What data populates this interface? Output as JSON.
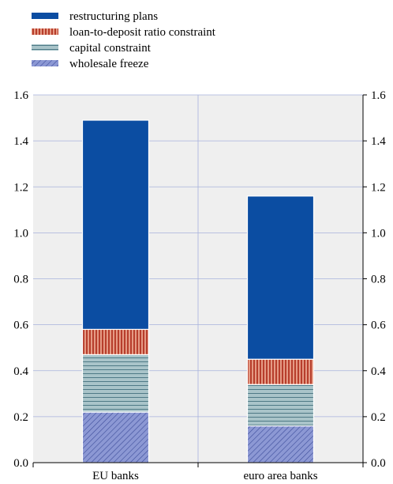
{
  "chart_data": {
    "type": "bar",
    "stacked": true,
    "categories": [
      "EU banks",
      "euro area banks"
    ],
    "series": [
      {
        "name": "wholesale freeze",
        "values": [
          0.22,
          0.16
        ],
        "color": "#8C98D4",
        "pattern": "diagonal-hatch"
      },
      {
        "name": "capital constraint",
        "values": [
          0.25,
          0.18
        ],
        "color": "#A9C4C9",
        "pattern": "horizontal-lines"
      },
      {
        "name": "loan-to-deposit ratio constraint",
        "values": [
          0.11,
          0.11
        ],
        "color": "#E59A84",
        "pattern": "vertical-lines"
      },
      {
        "name": "restructuring plans",
        "values": [
          0.91,
          0.71
        ],
        "color": "#0B4DA2",
        "pattern": "solid"
      }
    ],
    "legend_order": [
      "restructuring plans",
      "loan-to-deposit ratio constraint",
      "capital constraint",
      "wholesale freeze"
    ],
    "ylim": [
      0,
      1.6
    ],
    "yticks": [
      "0.0",
      "0.2",
      "0.4",
      "0.6",
      "0.8",
      "1.0",
      "1.2",
      "1.4",
      "1.6"
    ],
    "grid": true,
    "legend_position": "top-left",
    "plot_background": "#EFEFEF",
    "grid_color": "#A7B2DC"
  }
}
